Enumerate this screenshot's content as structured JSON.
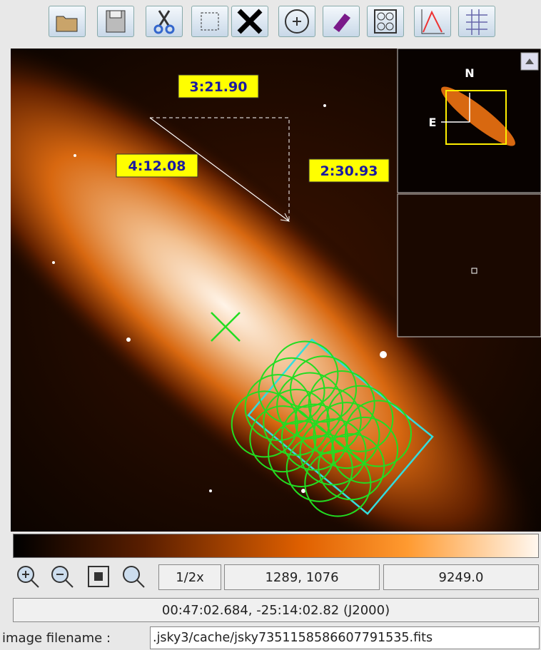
{
  "image_view": {
    "measurements": [
      "3:21.90",
      "4:12.08",
      "2:30.93"
    ],
    "compass": {
      "north": "N",
      "east": "E"
    }
  },
  "status": {
    "zoom": "1/2x",
    "pixel": "1289, 1076",
    "value": "9249.0",
    "world": "00:47:02.684, -25:14:02.82 (J2000)"
  },
  "filename": {
    "label": "image filename :",
    "value": ".jsky3/cache/jsky7351158586607791535.fits"
  }
}
